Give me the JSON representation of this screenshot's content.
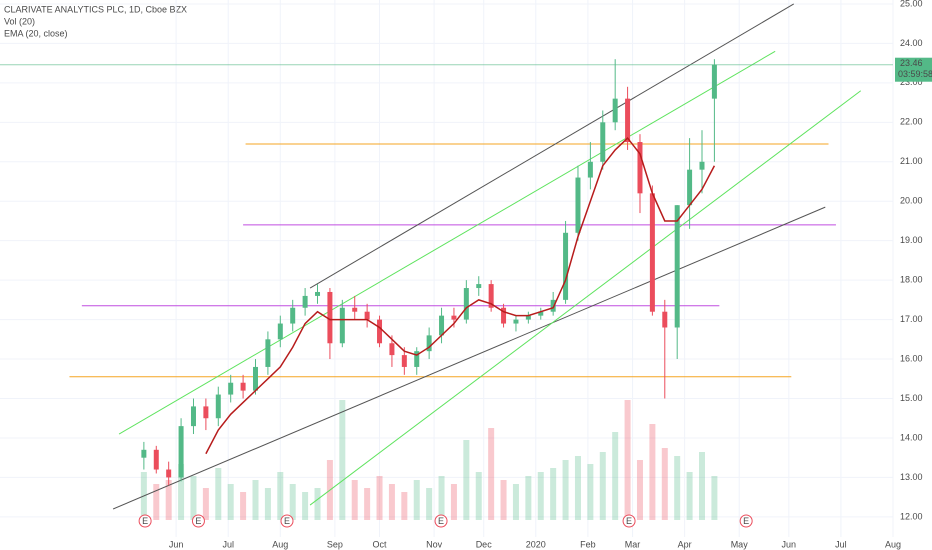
{
  "chart_data": {
    "type": "candlestick",
    "title": "CLARIVATE ANALYTICS PLC, 1D, Cboe BZX",
    "indicators": [
      "Vol (20)",
      "EMA (20, close)"
    ],
    "xlim": [
      0,
      360
    ],
    "xticks": [
      {
        "value": 71,
        "label": "Jun"
      },
      {
        "value": 92,
        "label": "Jul"
      },
      {
        "value": 113,
        "label": "Aug"
      },
      {
        "value": 135,
        "label": "Sep"
      },
      {
        "value": 153,
        "label": "Oct"
      },
      {
        "value": 175,
        "label": "Nov"
      },
      {
        "value": 195,
        "label": "Dec"
      },
      {
        "value": 216,
        "label": "2020"
      },
      {
        "value": 237,
        "label": "Feb"
      },
      {
        "value": 255,
        "label": "Mar"
      },
      {
        "value": 276,
        "label": "Apr"
      },
      {
        "value": 298,
        "label": "May"
      },
      {
        "value": 318,
        "label": "Jun"
      },
      {
        "value": 339,
        "label": "Jul"
      },
      {
        "value": 360,
        "label": "Aug"
      }
    ],
    "ylim": [
      11.49,
      25.1
    ],
    "yticks": [
      {
        "value": 12,
        "label": "12.00"
      },
      {
        "value": 13,
        "label": "13.00"
      },
      {
        "value": 14,
        "label": "14.00"
      },
      {
        "value": 15,
        "label": "15.00"
      },
      {
        "value": 16,
        "label": "16.00"
      },
      {
        "value": 17,
        "label": "17.00"
      },
      {
        "value": 18,
        "label": "18.00"
      },
      {
        "value": 19,
        "label": "19.00"
      },
      {
        "value": 20,
        "label": "20.00"
      },
      {
        "value": 21,
        "label": "21.00"
      },
      {
        "value": 22,
        "label": "22.00"
      },
      {
        "value": 23,
        "label": "23.00"
      },
      {
        "value": 24,
        "label": "24.00"
      },
      {
        "value": 25,
        "label": "25.00"
      }
    ],
    "up_color": "#53b987",
    "down_color": "#eb4d5c",
    "x": [
      58,
      63,
      68,
      73,
      78,
      83,
      88,
      93,
      98,
      103,
      108,
      113,
      118,
      123,
      128,
      133,
      138,
      143,
      148,
      153,
      158,
      163,
      168,
      173,
      178,
      183,
      188,
      193,
      198,
      203,
      208,
      213,
      218,
      223,
      228,
      233,
      238,
      243,
      248,
      253,
      258,
      263,
      268,
      273,
      278,
      283,
      288
    ],
    "open": [
      13.5,
      13.7,
      13.2,
      13.0,
      14.3,
      14.8,
      14.5,
      15.1,
      15.4,
      15.2,
      15.8,
      16.5,
      16.9,
      17.3,
      17.6,
      17.7,
      16.4,
      17.3,
      17.2,
      17.0,
      16.4,
      16.1,
      15.8,
      16.2,
      16.6,
      17.1,
      17.0,
      17.8,
      17.9,
      17.3,
      16.9,
      17.0,
      17.1,
      17.2,
      17.5,
      19.2,
      20.6,
      21.0,
      22.0,
      22.6,
      21.5,
      20.2,
      17.2,
      16.8,
      19.9,
      20.8,
      22.6
    ],
    "high": [
      13.9,
      13.8,
      13.4,
      14.5,
      15.0,
      15.0,
      15.3,
      15.6,
      15.6,
      16.0,
      16.7,
      17.1,
      17.5,
      17.8,
      17.9,
      17.8,
      17.5,
      17.6,
      17.4,
      17.1,
      16.6,
      16.3,
      16.3,
      16.8,
      17.3,
      17.3,
      18.0,
      18.1,
      18.0,
      17.4,
      17.1,
      17.2,
      17.3,
      17.7,
      19.5,
      20.9,
      21.5,
      22.3,
      23.6,
      22.9,
      21.7,
      20.4,
      17.5,
      19.9,
      21.6,
      21.8,
      23.6
    ],
    "low": [
      13.2,
      13.1,
      12.8,
      12.9,
      14.1,
      14.2,
      14.3,
      14.9,
      15.0,
      15.1,
      15.6,
      16.3,
      16.7,
      17.1,
      17.4,
      16.0,
      16.3,
      17.0,
      16.8,
      16.3,
      15.8,
      15.6,
      15.6,
      16.0,
      16.4,
      16.8,
      16.9,
      17.6,
      17.2,
      16.8,
      16.7,
      16.9,
      17.0,
      17.1,
      17.4,
      19.0,
      20.3,
      20.8,
      21.8,
      21.3,
      19.7,
      17.1,
      15.0,
      16.0,
      19.3,
      20.2,
      21.0
    ],
    "close": [
      13.7,
      13.2,
      13.0,
      14.3,
      14.8,
      14.5,
      15.1,
      15.4,
      15.2,
      15.8,
      16.5,
      16.9,
      17.3,
      17.6,
      17.7,
      16.4,
      17.3,
      17.2,
      17.0,
      16.4,
      16.1,
      15.8,
      16.2,
      16.6,
      17.1,
      17.0,
      17.8,
      17.9,
      17.3,
      16.9,
      17.0,
      17.1,
      17.2,
      17.5,
      19.2,
      20.6,
      21.0,
      22.0,
      22.6,
      21.5,
      20.2,
      17.2,
      16.8,
      19.9,
      20.8,
      21.0,
      23.46
    ],
    "volume": [
      1.2,
      0.9,
      1.0,
      1.4,
      1.1,
      0.8,
      1.3,
      0.9,
      0.7,
      1.0,
      0.8,
      1.2,
      0.9,
      0.7,
      0.8,
      1.5,
      3.0,
      1.0,
      0.8,
      1.1,
      0.9,
      0.7,
      1.0,
      0.8,
      1.1,
      0.9,
      2.0,
      1.2,
      2.3,
      1.0,
      0.9,
      1.1,
      1.2,
      1.3,
      1.5,
      1.6,
      1.4,
      1.7,
      2.2,
      3.0,
      1.5,
      2.4,
      1.8,
      1.6,
      1.2,
      1.7,
      1.1
    ],
    "ema": [
      null,
      null,
      null,
      null,
      null,
      13.6,
      14.2,
      14.6,
      14.9,
      15.2,
      15.5,
      15.8,
      16.3,
      16.9,
      17.2,
      17.0,
      17.0,
      17.0,
      17.0,
      16.8,
      16.5,
      16.2,
      16.1,
      16.3,
      16.6,
      16.9,
      17.3,
      17.5,
      17.4,
      17.2,
      17.1,
      17.1,
      17.2,
      17.3,
      18.0,
      19.1,
      20.0,
      20.9,
      21.3,
      21.6,
      21.2,
      20.2,
      19.5,
      19.5,
      19.9,
      20.3,
      20.9
    ],
    "ema_color": "#b71c1c",
    "drawings": [
      {
        "x1": 99,
        "y1": 21.45,
        "x2": 334,
        "y2": 21.45,
        "color": "#f5a623"
      },
      {
        "x1": 98,
        "y1": 19.4,
        "x2": 337,
        "y2": 19.4,
        "color": "#c04ee0"
      },
      {
        "x1": 33,
        "y1": 17.35,
        "x2": 290,
        "y2": 17.35,
        "color": "#c04ee0"
      },
      {
        "x1": 28,
        "y1": 15.55,
        "x2": 319,
        "y2": 15.55,
        "color": "#f5a623"
      },
      {
        "x1": 125,
        "y1": 17.8,
        "x2": 320,
        "y2": 25.0,
        "color": "#555555"
      },
      {
        "x1": 45.6,
        "y1": 12.2,
        "x2": 332.7,
        "y2": 19.85,
        "color": "#555555"
      },
      {
        "x1": 48,
        "y1": 14.1,
        "x2": 312.5,
        "y2": 23.8,
        "color": "#5ee35e"
      },
      {
        "x1": 125,
        "y1": 12.3,
        "x2": 347,
        "y2": 22.8,
        "color": "#5ee35e"
      }
    ],
    "last_price": 23.46,
    "last_price_label": "23.46",
    "countdown": "03:59:58",
    "earnings_label": "E",
    "earnings_x": [
      58.5,
      80,
      115.7,
      177.8,
      253.6,
      300.8
    ]
  }
}
